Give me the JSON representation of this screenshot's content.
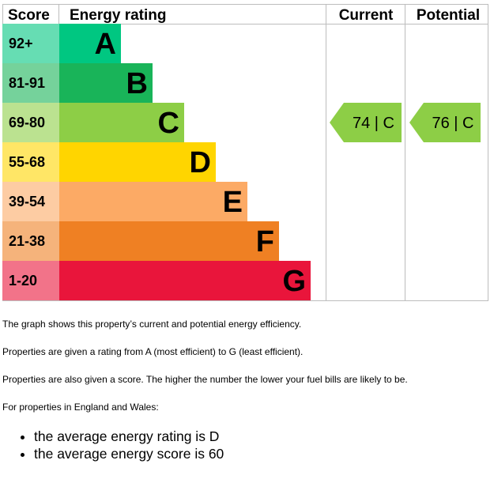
{
  "chart_data": {
    "type": "table",
    "header": {
      "score": "Score",
      "rating": "Energy rating",
      "current": "Current",
      "potential": "Potential"
    },
    "bands": [
      {
        "score": "92+",
        "letter": "A",
        "color": "#00c781",
        "score_color": "#66ddb3"
      },
      {
        "score": "81-91",
        "letter": "B",
        "color": "#19b459",
        "score_color": "#75d29b"
      },
      {
        "score": "69-80",
        "letter": "C",
        "color": "#8dce46",
        "score_color": "#bbe290"
      },
      {
        "score": "55-68",
        "letter": "D",
        "color": "#ffd500",
        "score_color": "#ffe666"
      },
      {
        "score": "39-54",
        "letter": "E",
        "color": "#fcaa65",
        "score_color": "#fdcca3"
      },
      {
        "score": "21-38",
        "letter": "F",
        "color": "#ef8023",
        "score_color": "#f5b37b"
      },
      {
        "score": "1-20",
        "letter": "G",
        "color": "#e9153b",
        "score_color": "#f27389"
      }
    ],
    "current": {
      "score": 74,
      "letter": "C",
      "label": "74 | C",
      "color": "#8dce46"
    },
    "potential": {
      "score": 76,
      "letter": "C",
      "label": "76 | C",
      "color": "#8dce46"
    }
  },
  "text": {
    "p1": "The graph shows this property’s current and potential energy efficiency.",
    "p2": "Properties are given a rating from A (most efficient) to G (least efficient).",
    "p3": "Properties are also given a score. The higher the number the lower your fuel bills are likely to be.",
    "p4": "For properties in England and Wales:",
    "bullets": [
      "the average energy rating is D",
      "the average energy score is 60"
    ]
  }
}
